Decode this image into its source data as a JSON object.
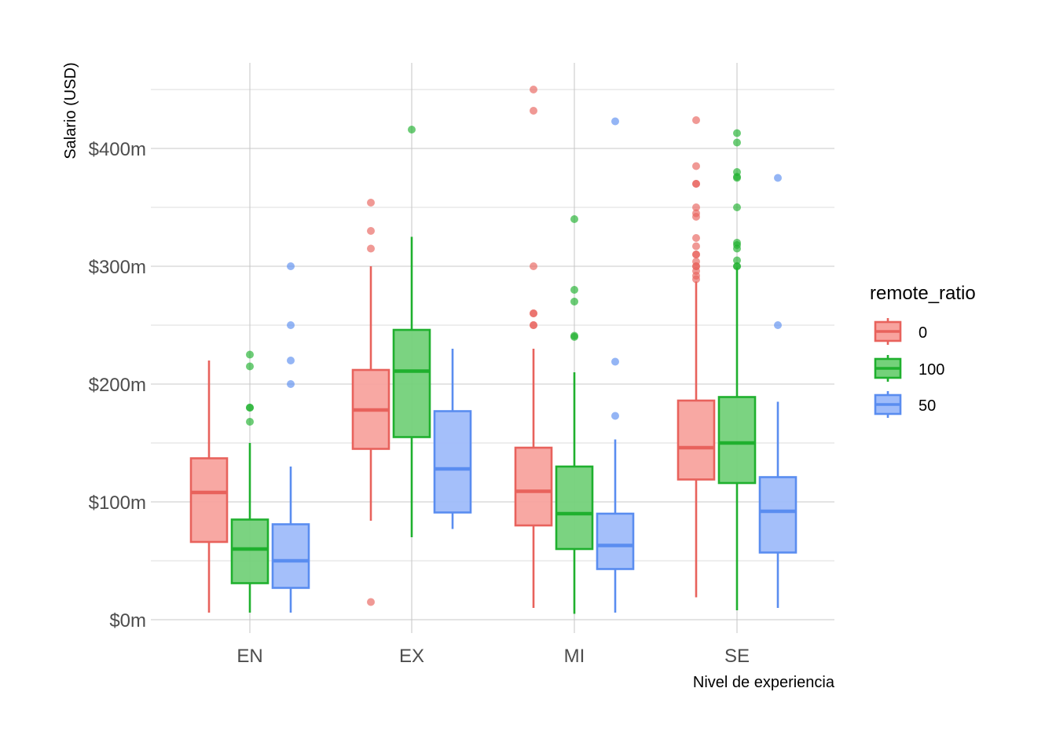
{
  "chart_data": {
    "type": "boxplot",
    "xlabel": "Nivel de experiencia",
    "ylabel": "Salario (USD)",
    "categories": [
      "EN",
      "EX",
      "MI",
      "SE"
    ],
    "ylim": [
      -10,
      450
    ],
    "yticks": [
      {
        "value": 0,
        "label": "$0m"
      },
      {
        "value": 100,
        "label": "$100m"
      },
      {
        "value": 200,
        "label": "$200m"
      },
      {
        "value": 300,
        "label": "$300m"
      },
      {
        "value": 400,
        "label": "$400m"
      }
    ],
    "grid": true,
    "legend": {
      "title": "remote_ratio",
      "position": "right"
    },
    "series": [
      {
        "name": "0",
        "color": "#e8625c",
        "fill": "#f8a39e",
        "boxes": [
          {
            "category": "EN",
            "whisker_low": 6,
            "q1": 66,
            "median": 108,
            "q3": 137,
            "whisker_high": 220,
            "outliers": []
          },
          {
            "category": "EX",
            "whisker_low": 84,
            "q1": 145,
            "median": 178,
            "q3": 212,
            "whisker_high": 300,
            "outliers": [
              15,
              315,
              330,
              354
            ]
          },
          {
            "category": "MI",
            "whisker_low": 10,
            "q1": 80,
            "median": 109,
            "q3": 146,
            "whisker_high": 230,
            "outliers": [
              250,
              250,
              260,
              260,
              300,
              432,
              450
            ]
          },
          {
            "category": "SE",
            "whisker_low": 19,
            "q1": 119,
            "median": 146,
            "q3": 186,
            "whisker_high": 287,
            "outliers": [
              289,
              292,
              296,
              300,
              300,
              304,
              310,
              310,
              317,
              324,
              342,
              345,
              350,
              370,
              370,
              385,
              424
            ]
          }
        ]
      },
      {
        "name": "100",
        "color": "#1fb02e",
        "fill": "#74d17a",
        "boxes": [
          {
            "category": "EN",
            "whisker_low": 6,
            "q1": 31,
            "median": 60,
            "q3": 85,
            "whisker_high": 150,
            "outliers": [
              168,
              180,
              180,
              215,
              225
            ]
          },
          {
            "category": "EX",
            "whisker_low": 70,
            "q1": 155,
            "median": 211,
            "q3": 246,
            "whisker_high": 325,
            "outliers": [
              416
            ]
          },
          {
            "category": "MI",
            "whisker_low": 5,
            "q1": 60,
            "median": 90,
            "q3": 130,
            "whisker_high": 210,
            "outliers": [
              240,
              241,
              270,
              280,
              340
            ]
          },
          {
            "category": "SE",
            "whisker_low": 8,
            "q1": 116,
            "median": 150,
            "q3": 189,
            "whisker_high": 299,
            "outliers": [
              300,
              300,
              305,
              315,
              318,
              320,
              350,
              375,
              376,
              380,
              405,
              413
            ]
          }
        ]
      },
      {
        "name": "50",
        "color": "#5a8df0",
        "fill": "#9fbcfa",
        "boxes": [
          {
            "category": "EN",
            "whisker_low": 6,
            "q1": 27,
            "median": 50,
            "q3": 81,
            "whisker_high": 130,
            "outliers": [
              200,
              220,
              250,
              300
            ]
          },
          {
            "category": "EX",
            "whisker_low": 77,
            "q1": 91,
            "median": 128,
            "q3": 177,
            "whisker_high": 230,
            "outliers": []
          },
          {
            "category": "MI",
            "whisker_low": 6,
            "q1": 43,
            "median": 63,
            "q3": 90,
            "whisker_high": 153,
            "outliers": [
              173,
              219,
              423
            ]
          },
          {
            "category": "SE",
            "whisker_low": 10,
            "q1": 57,
            "median": 92,
            "q3": 121,
            "whisker_high": 185,
            "outliers": [
              250,
              375
            ]
          }
        ]
      }
    ]
  }
}
